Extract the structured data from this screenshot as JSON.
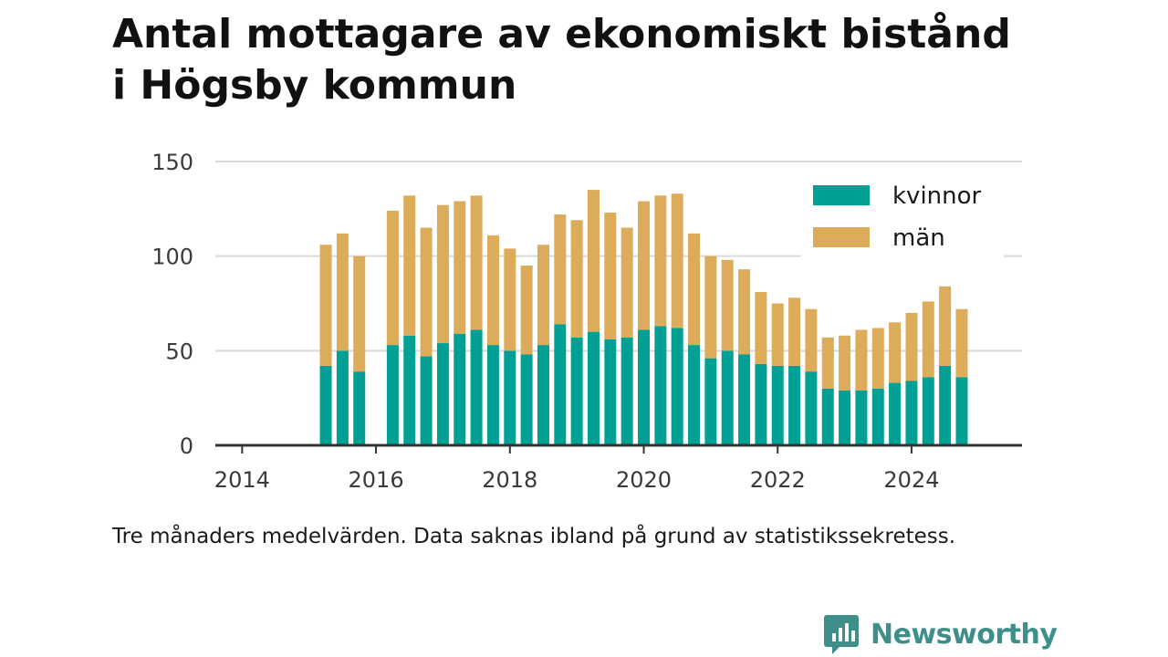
{
  "title_line1": "Antal mottagare av ekonomiskt bistånd",
  "title_line2": "i Högsby kommun",
  "note": "Tre månaders medelvärden. Data saknas ibland på grund av statistikssekretess.",
  "brand": "Newsworthy",
  "colors": {
    "kvinnor": "#00a094",
    "man": "#dcac5b",
    "grid": "#d9d9d9",
    "axis": "#333333",
    "brand": "#3e8f8a"
  },
  "chart_data": {
    "type": "bar",
    "stacked": true,
    "xlim": [
      2013.6,
      2025.65
    ],
    "ylim": [
      0,
      150
    ],
    "yticks": [
      0,
      50,
      100,
      150
    ],
    "xticks": [
      2014,
      2016,
      2018,
      2020,
      2022,
      2024
    ],
    "legend_position": "top-right",
    "x": [
      "2015-04",
      "2015-07",
      "2015-10",
      "2016-04",
      "2016-07",
      "2016-10",
      "2017-01",
      "2017-04",
      "2017-07",
      "2017-10",
      "2018-01",
      "2018-04",
      "2018-07",
      "2018-10",
      "2019-01",
      "2019-04",
      "2019-07",
      "2019-10",
      "2020-01",
      "2020-04",
      "2020-07",
      "2020-10",
      "2021-01",
      "2021-04",
      "2021-07",
      "2021-10",
      "2022-01",
      "2022-04",
      "2022-07",
      "2022-10",
      "2023-01",
      "2023-04",
      "2023-07",
      "2023-10",
      "2024-01",
      "2024-04",
      "2024-07",
      "2024-10"
    ],
    "series": [
      {
        "name": "kvinnor",
        "values": [
          42,
          50,
          39,
          53,
          58,
          47,
          54,
          59,
          61,
          53,
          50,
          48,
          53,
          64,
          57,
          60,
          56,
          57,
          61,
          63,
          62,
          53,
          46,
          50,
          48,
          43,
          42,
          42,
          39,
          30,
          29,
          29,
          30,
          33,
          34,
          36,
          42,
          36
        ]
      },
      {
        "name": "män",
        "values": [
          64,
          62,
          61,
          71,
          74,
          68,
          73,
          70,
          71,
          58,
          54,
          47,
          53,
          58,
          62,
          75,
          67,
          58,
          68,
          69,
          71,
          59,
          54,
          48,
          45,
          38,
          33,
          36,
          33,
          27,
          29,
          32,
          32,
          32,
          36,
          40,
          42,
          36
        ]
      }
    ]
  }
}
